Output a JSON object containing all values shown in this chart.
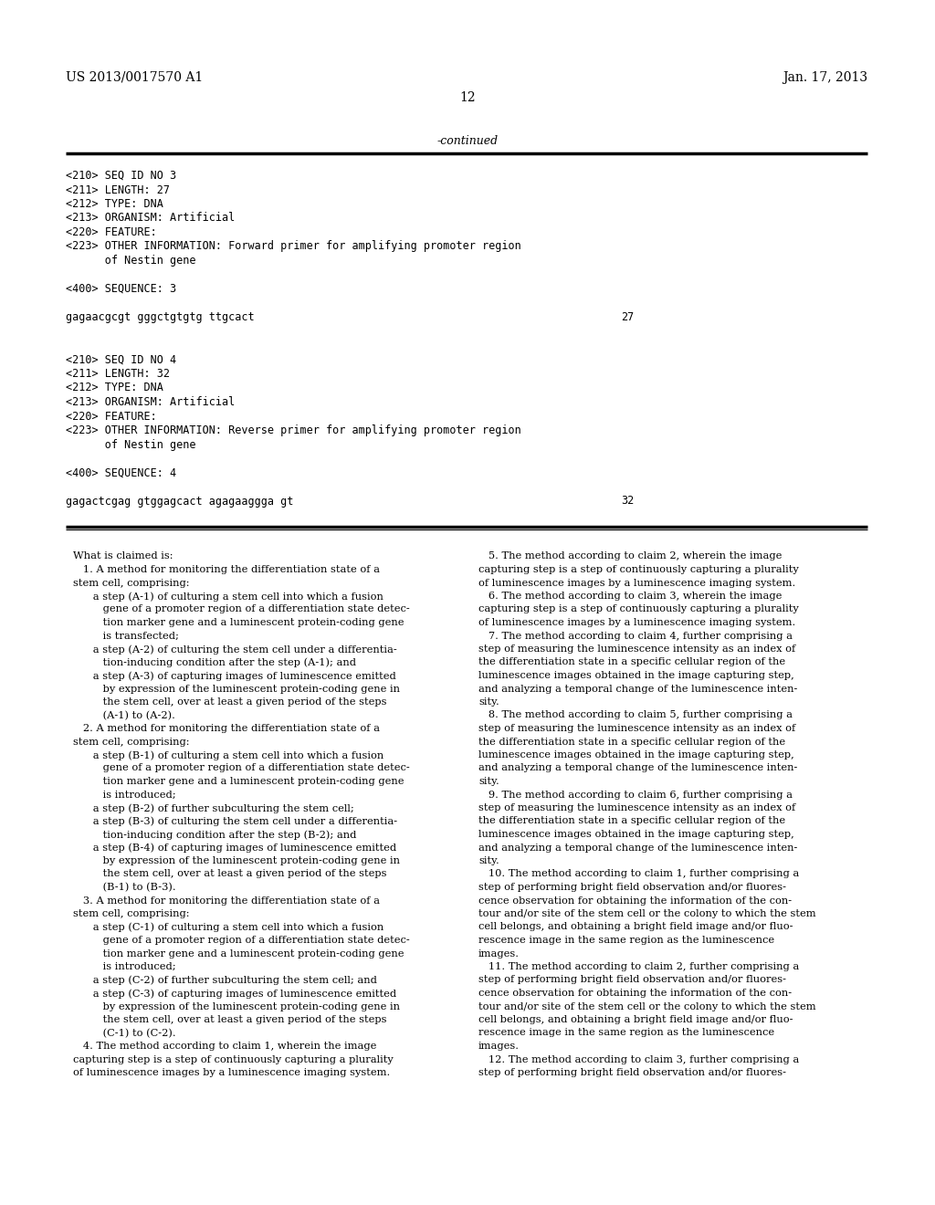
{
  "background_color": "#ffffff",
  "header_left": "US 2013/0017570 A1",
  "header_right": "Jan. 17, 2013",
  "page_number": "12",
  "continued_label": "-continued",
  "seq_block": [
    "<210> SEQ ID NO 3",
    "<211> LENGTH: 27",
    "<212> TYPE: DNA",
    "<213> ORGANISM: Artificial",
    "<220> FEATURE:",
    "<223> OTHER INFORMATION: Forward primer for amplifying promoter region",
    "      of Nestin gene",
    "",
    "<400> SEQUENCE: 3",
    "",
    "gagaacgcgt gggctgtgtg ttgcact",
    "27",
    "",
    "",
    "<210> SEQ ID NO 4",
    "<211> LENGTH: 32",
    "<212> TYPE: DNA",
    "<213> ORGANISM: Artificial",
    "<220> FEATURE:",
    "<223> OTHER INFORMATION: Reverse primer for amplifying promoter region",
    "      of Nestin gene",
    "",
    "<400> SEQUENCE: 4",
    "",
    "gagactcgag gtggagcact agagaaggga gt",
    "32"
  ],
  "seq_number_indices": [
    11,
    25
  ],
  "seq_number_values": [
    "27",
    "32"
  ],
  "seq_line_indices": [
    10,
    24
  ],
  "claims_left": [
    "What is claimed is:",
    "   1. A method for monitoring the differentiation state of a",
    "stem cell, comprising:",
    "      a step (A-1) of culturing a stem cell into which a fusion",
    "         gene of a promoter region of a differentiation state detec-",
    "         tion marker gene and a luminescent protein-coding gene",
    "         is transfected;",
    "      a step (A-2) of culturing the stem cell under a differentia-",
    "         tion-inducing condition after the step (A-1); and",
    "      a step (A-3) of capturing images of luminescence emitted",
    "         by expression of the luminescent protein-coding gene in",
    "         the stem cell, over at least a given period of the steps",
    "         (A-1) to (A-2).",
    "   2. A method for monitoring the differentiation state of a",
    "stem cell, comprising:",
    "      a step (B-1) of culturing a stem cell into which a fusion",
    "         gene of a promoter region of a differentiation state detec-",
    "         tion marker gene and a luminescent protein-coding gene",
    "         is introduced;",
    "      a step (B-2) of further subculturing the stem cell;",
    "      a step (B-3) of culturing the stem cell under a differentia-",
    "         tion-inducing condition after the step (B-2); and",
    "      a step (B-4) of capturing images of luminescence emitted",
    "         by expression of the luminescent protein-coding gene in",
    "         the stem cell, over at least a given period of the steps",
    "         (B-1) to (B-3).",
    "   3. A method for monitoring the differentiation state of a",
    "stem cell, comprising:",
    "      a step (C-1) of culturing a stem cell into which a fusion",
    "         gene of a promoter region of a differentiation state detec-",
    "         tion marker gene and a luminescent protein-coding gene",
    "         is introduced;",
    "      a step (C-2) of further subculturing the stem cell; and",
    "      a step (C-3) of capturing images of luminescence emitted",
    "         by expression of the luminescent protein-coding gene in",
    "         the stem cell, over at least a given period of the steps",
    "         (C-1) to (C-2).",
    "   4. The method according to claim 1, wherein the image",
    "capturing step is a step of continuously capturing a plurality",
    "of luminescence images by a luminescence imaging system."
  ],
  "claims_right": [
    "   5. The method according to claim 2, wherein the image",
    "capturing step is a step of continuously capturing a plurality",
    "of luminescence images by a luminescence imaging system.",
    "   6. The method according to claim 3, wherein the image",
    "capturing step is a step of continuously capturing a plurality",
    "of luminescence images by a luminescence imaging system.",
    "   7. The method according to claim 4, further comprising a",
    "step of measuring the luminescence intensity as an index of",
    "the differentiation state in a specific cellular region of the",
    "luminescence images obtained in the image capturing step,",
    "and analyzing a temporal change of the luminescence inten-",
    "sity.",
    "   8. The method according to claim 5, further comprising a",
    "step of measuring the luminescence intensity as an index of",
    "the differentiation state in a specific cellular region of the",
    "luminescence images obtained in the image capturing step,",
    "and analyzing a temporal change of the luminescence inten-",
    "sity.",
    "   9. The method according to claim 6, further comprising a",
    "step of measuring the luminescence intensity as an index of",
    "the differentiation state in a specific cellular region of the",
    "luminescence images obtained in the image capturing step,",
    "and analyzing a temporal change of the luminescence inten-",
    "sity.",
    "   10. The method according to claim 1, further comprising a",
    "step of performing bright field observation and/or fluores-",
    "cence observation for obtaining the information of the con-",
    "tour and/or site of the stem cell or the colony to which the stem",
    "cell belongs, and obtaining a bright field image and/or fluo-",
    "rescence image in the same region as the luminescence",
    "images.",
    "   11. The method according to claim 2, further comprising a",
    "step of performing bright field observation and/or fluores-",
    "cence observation for obtaining the information of the con-",
    "tour and/or site of the stem cell or the colony to which the stem",
    "cell belongs, and obtaining a bright field image and/or fluo-",
    "rescence image in the same region as the luminescence",
    "images.",
    "   12. The method according to claim 3, further comprising a",
    "step of performing bright field observation and/or fluores-"
  ]
}
